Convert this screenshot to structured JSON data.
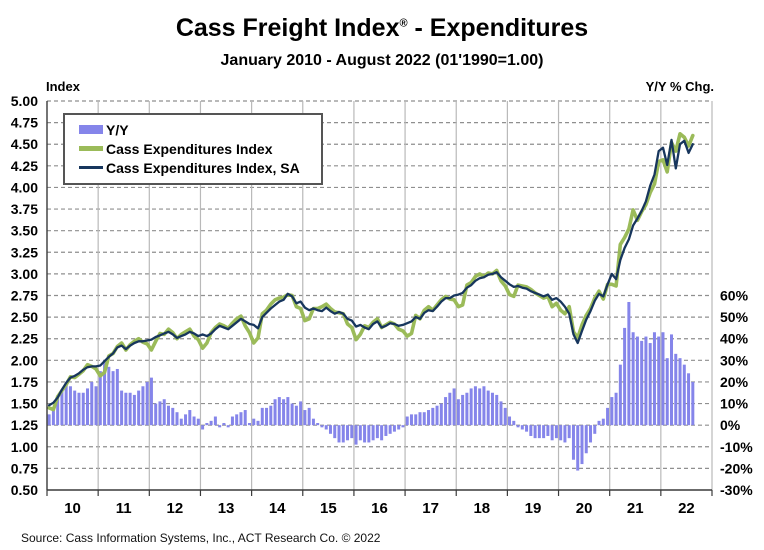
{
  "header": {
    "title_main": "Cass Freight Index",
    "title_reg": "®",
    "title_rest": " - Expenditures",
    "subtitle": "January 2010 - August 2022 (01'1990=1.00)"
  },
  "corner_labels": {
    "left": "Index",
    "right": "Y/Y % Chg."
  },
  "footer": {
    "source": "Source: Cass Information Systems, Inc., ACT Research Co. © 2022"
  },
  "colors": {
    "bar": "#8585ea",
    "line_nsa": "#9bbb59",
    "line_sa": "#17365d",
    "grid_dash": "#8f8f8f",
    "grid_year": "#b9b9b9",
    "axis": "#3a3a3a",
    "text": "#000000"
  },
  "chart_data": {
    "type": "combo-bar-line",
    "title": "Cass Freight Index - Expenditures",
    "subtitle": "January 2010 - August 2022 (01'1990=1.00)",
    "x_start": "2010-01",
    "x_end": "2022-08",
    "months_shown": 152,
    "x_axis_span_months": 156,
    "categories_years": [
      "10",
      "11",
      "12",
      "13",
      "14",
      "15",
      "16",
      "17",
      "18",
      "19",
      "20",
      "21",
      "22"
    ],
    "left_axis": {
      "label": "Index",
      "min": 0.5,
      "max": 5.0,
      "step": 0.25
    },
    "right_axis": {
      "label": "Y/Y % Chg.",
      "min": -30,
      "max": 60,
      "step": 10,
      "tick_labels": [
        "60%",
        "50%",
        "40%",
        "30%",
        "20%",
        "10%",
        "0%",
        "-10%",
        "-20%",
        "-30%"
      ],
      "zero_pct_at_left_index": 1.25,
      "pct_per_left_step": 10
    },
    "grid": {
      "horizontal_dashed": true,
      "vertical_year_lines": true,
      "legend_position": "top-left"
    },
    "legend": [
      {
        "label": "Y/Y",
        "type": "bar",
        "color": "#8585ea"
      },
      {
        "label": "Cass Expenditures Index",
        "type": "line",
        "color": "#9bbb59"
      },
      {
        "label": "Cass Expenditures Index, SA",
        "type": "line",
        "color": "#17365d"
      }
    ],
    "series": {
      "yy_pct": [
        5,
        8,
        13,
        16,
        19,
        18,
        16,
        15,
        15,
        17,
        20,
        18,
        25,
        30,
        27,
        25,
        26,
        16,
        15,
        15,
        14,
        16,
        18,
        20,
        22,
        10,
        11,
        12,
        9,
        8,
        6,
        3,
        5,
        7,
        4,
        3,
        -2,
        1,
        2,
        4,
        -1,
        1,
        -1,
        4,
        5,
        6,
        7,
        1,
        3,
        2,
        8,
        8,
        9,
        12,
        13,
        12,
        13,
        10,
        9,
        11,
        7,
        8,
        3,
        1,
        -1,
        -2,
        -4,
        -6,
        -8,
        -8,
        -7,
        -6,
        -9,
        -7,
        -8,
        -8,
        -7,
        -6,
        -7,
        -5,
        -4,
        -3,
        -2,
        -1,
        4,
        5,
        5,
        6,
        6,
        7,
        8,
        9,
        10,
        13,
        15,
        17,
        12,
        14,
        15,
        17,
        18,
        17,
        18,
        16,
        15,
        14,
        11,
        8,
        4,
        2,
        -1,
        -2,
        -3,
        -5,
        -6,
        -6,
        -6,
        -5,
        -7,
        -6,
        -7,
        -8,
        -6,
        -16,
        -21,
        -18,
        -13,
        -8,
        -4,
        2,
        3,
        8,
        13,
        15,
        28,
        45,
        57,
        43,
        41,
        39,
        41,
        38,
        43,
        41,
        43,
        31,
        42,
        33,
        31,
        28,
        24,
        20
      ],
      "index_nsa": [
        1.45,
        1.43,
        1.58,
        1.65,
        1.72,
        1.81,
        1.8,
        1.84,
        1.88,
        1.95,
        1.93,
        1.9,
        1.82,
        1.86,
        2.05,
        2.08,
        2.16,
        2.2,
        2.12,
        2.18,
        2.22,
        2.25,
        2.21,
        2.19,
        2.12,
        2.22,
        2.31,
        2.3,
        2.36,
        2.32,
        2.25,
        2.3,
        2.33,
        2.36,
        2.28,
        2.24,
        2.14,
        2.2,
        2.32,
        2.38,
        2.42,
        2.4,
        2.37,
        2.43,
        2.48,
        2.51,
        2.4,
        2.32,
        2.2,
        2.26,
        2.54,
        2.58,
        2.65,
        2.7,
        2.72,
        2.73,
        2.76,
        2.75,
        2.62,
        2.6,
        2.46,
        2.48,
        2.6,
        2.6,
        2.62,
        2.65,
        2.6,
        2.56,
        2.55,
        2.54,
        2.42,
        2.38,
        2.24,
        2.3,
        2.4,
        2.38,
        2.44,
        2.48,
        2.38,
        2.41,
        2.44,
        2.42,
        2.36,
        2.34,
        2.28,
        2.31,
        2.52,
        2.48,
        2.58,
        2.62,
        2.58,
        2.64,
        2.7,
        2.74,
        2.71,
        2.7,
        2.62,
        2.64,
        2.87,
        2.9,
        2.97,
        3.0,
        2.97,
        3.01,
        3.0,
        3.04,
        2.92,
        2.86,
        2.76,
        2.74,
        2.87,
        2.86,
        2.85,
        2.82,
        2.78,
        2.75,
        2.72,
        2.74,
        2.62,
        2.66,
        2.58,
        2.54,
        2.62,
        2.33,
        2.26,
        2.41,
        2.52,
        2.6,
        2.72,
        2.8,
        2.71,
        2.88,
        2.88,
        2.86,
        3.34,
        3.42,
        3.52,
        3.74,
        3.62,
        3.72,
        3.8,
        3.94,
        4.04,
        4.3,
        4.32,
        4.18,
        4.52,
        4.42,
        4.62,
        4.58,
        4.48,
        4.6
      ],
      "index_sa": [
        1.48,
        1.51,
        1.57,
        1.66,
        1.74,
        1.8,
        1.82,
        1.85,
        1.89,
        1.92,
        1.93,
        1.93,
        1.94,
        1.99,
        2.04,
        2.08,
        2.15,
        2.17,
        2.13,
        2.17,
        2.2,
        2.22,
        2.22,
        2.23,
        2.24,
        2.27,
        2.29,
        2.31,
        2.33,
        2.3,
        2.26,
        2.28,
        2.3,
        2.33,
        2.31,
        2.28,
        2.3,
        2.28,
        2.31,
        2.36,
        2.4,
        2.38,
        2.36,
        2.4,
        2.44,
        2.48,
        2.45,
        2.42,
        2.41,
        2.37,
        2.5,
        2.55,
        2.6,
        2.64,
        2.68,
        2.7,
        2.77,
        2.74,
        2.66,
        2.68,
        2.61,
        2.58,
        2.6,
        2.58,
        2.57,
        2.61,
        2.57,
        2.54,
        2.56,
        2.54,
        2.48,
        2.46,
        2.39,
        2.41,
        2.38,
        2.36,
        2.42,
        2.45,
        2.38,
        2.4,
        2.43,
        2.42,
        2.4,
        2.41,
        2.43,
        2.45,
        2.5,
        2.48,
        2.55,
        2.58,
        2.57,
        2.62,
        2.68,
        2.72,
        2.72,
        2.75,
        2.76,
        2.78,
        2.84,
        2.87,
        2.92,
        2.95,
        2.96,
        2.99,
        3.0,
        3.02,
        2.96,
        2.92,
        2.88,
        2.85,
        2.86,
        2.84,
        2.83,
        2.8,
        2.78,
        2.76,
        2.74,
        2.76,
        2.7,
        2.72,
        2.68,
        2.62,
        2.54,
        2.3,
        2.2,
        2.34,
        2.47,
        2.57,
        2.69,
        2.77,
        2.74,
        2.88,
        3.0,
        2.94,
        3.16,
        3.3,
        3.4,
        3.56,
        3.64,
        3.73,
        3.84,
        4.02,
        4.15,
        4.42,
        4.46,
        4.26,
        4.55,
        4.22,
        4.5,
        4.54,
        4.4,
        4.5
      ]
    },
    "source": "Source: Cass Information Systems, Inc., ACT Research Co. © 2022"
  }
}
